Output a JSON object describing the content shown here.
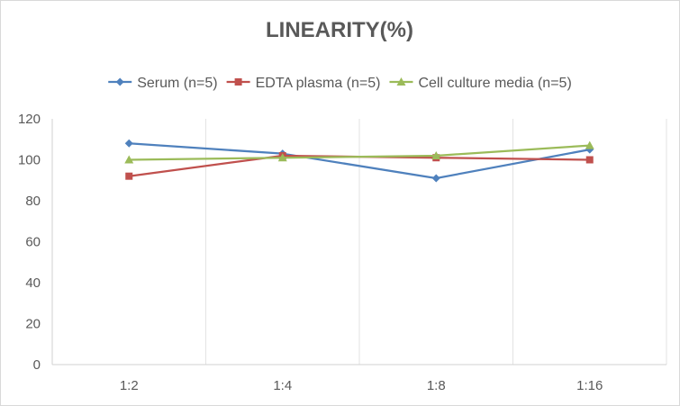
{
  "chart_data": {
    "type": "line",
    "title": "LINEARITY(%)",
    "categories": [
      "1:2",
      "1:4",
      "1:8",
      "1:16"
    ],
    "ylim": [
      0,
      120
    ],
    "yticks": [
      0,
      20,
      40,
      60,
      80,
      100,
      120
    ],
    "grid": "vertical",
    "legend_position": "top",
    "series": [
      {
        "name": "Serum (n=5)",
        "color": "#4f81bd",
        "marker": "diamond",
        "values": [
          108,
          103,
          91,
          105
        ]
      },
      {
        "name": "EDTA plasma (n=5)",
        "color": "#c0504d",
        "marker": "square",
        "values": [
          92,
          102,
          101,
          100
        ]
      },
      {
        "name": "Cell culture media (n=5)",
        "color": "#9bbb59",
        "marker": "triangle",
        "values": [
          100,
          101,
          102,
          107
        ]
      }
    ]
  }
}
